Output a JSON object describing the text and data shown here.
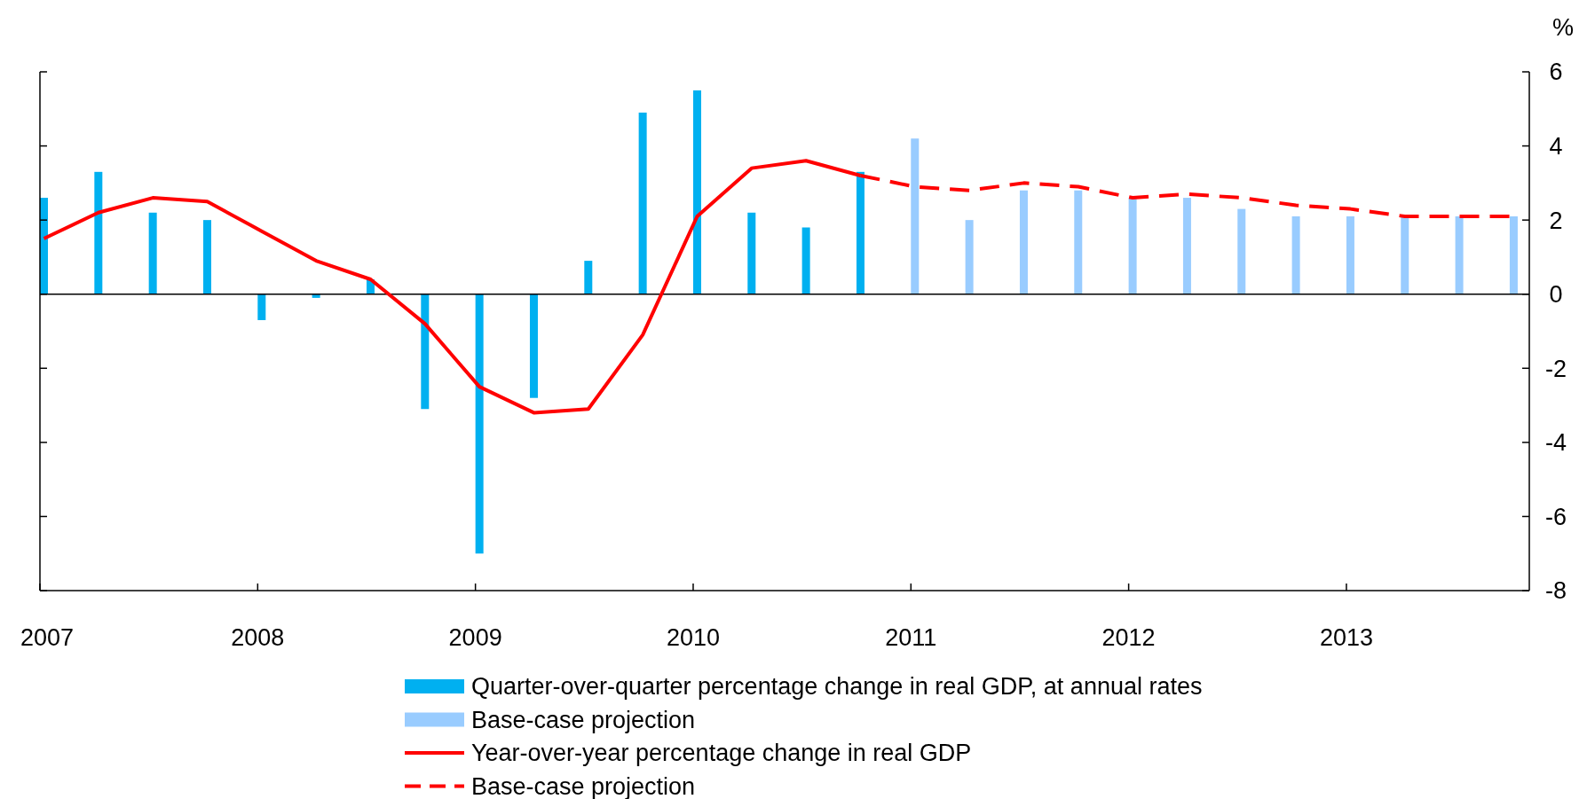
{
  "chart_data": {
    "type": "bar",
    "ylabel": "%",
    "x": [
      2007,
      2007.25,
      2007.5,
      2007.75,
      2008,
      2008.25,
      2008.5,
      2008.75,
      2009,
      2009.25,
      2009.5,
      2009.75,
      2010,
      2010.25,
      2010.5,
      2010.75,
      2011,
      2011.25,
      2011.5,
      2011.75,
      2012,
      2012.25,
      2012.5,
      2012.75,
      2013,
      2013.25,
      2013.5,
      2013.75
    ],
    "series": [
      {
        "name": "Quarter-over-quarter percentage change in real GDP, at annual rates",
        "color": "#00b0f0",
        "values": [
          2.6,
          3.3,
          2.2,
          2.0,
          -0.7,
          -0.1,
          0.4,
          -3.1,
          -7.0,
          -2.8,
          0.9,
          4.9,
          5.5,
          2.2,
          1.8,
          3.3,
          null,
          null,
          null,
          null,
          null,
          null,
          null,
          null,
          null,
          null,
          null,
          null
        ]
      },
      {
        "name": "Base-case projection",
        "color": "#99ccff",
        "values": [
          null,
          null,
          null,
          null,
          null,
          null,
          null,
          null,
          null,
          null,
          null,
          null,
          null,
          null,
          null,
          null,
          4.2,
          2.0,
          2.8,
          2.8,
          2.6,
          2.6,
          2.3,
          2.1,
          2.1,
          2.1,
          2.1,
          2.1
        ]
      },
      {
        "name": "Year-over-year percentage change in real GDP",
        "type": "line",
        "color": "#ff0000",
        "line_style": "solid",
        "x": [
          2007,
          2007.25,
          2007.5,
          2007.75,
          2008,
          2008.25,
          2008.5,
          2008.75,
          2009,
          2009.25,
          2009.5,
          2009.75,
          2010,
          2010.25,
          2010.5,
          2010.75
        ],
        "values": [
          1.5,
          2.2,
          2.6,
          2.5,
          1.7,
          0.9,
          0.4,
          -0.8,
          -2.5,
          -3.2,
          -3.1,
          -1.1,
          2.1,
          3.4,
          3.6,
          3.2
        ]
      },
      {
        "name": "Base-case projection",
        "type": "line",
        "color": "#ff0000",
        "line_style": "dashed",
        "x": [
          2010.75,
          2011,
          2011.25,
          2011.5,
          2011.75,
          2012,
          2012.25,
          2012.5,
          2012.75,
          2013,
          2013.25,
          2013.5,
          2013.75
        ],
        "values": [
          3.2,
          2.9,
          2.8,
          3.0,
          2.9,
          2.6,
          2.7,
          2.6,
          2.4,
          2.3,
          2.1,
          2.1,
          2.1
        ]
      }
    ],
    "xlim": [
      2007,
      2013.84
    ],
    "xticks": [
      2007,
      2008,
      2009,
      2010,
      2011,
      2012,
      2013
    ],
    "ylim": [
      -8,
      6
    ],
    "yticks": [
      -8,
      -6,
      -4,
      -2,
      0,
      2,
      4,
      6
    ],
    "legend": "bottom"
  }
}
